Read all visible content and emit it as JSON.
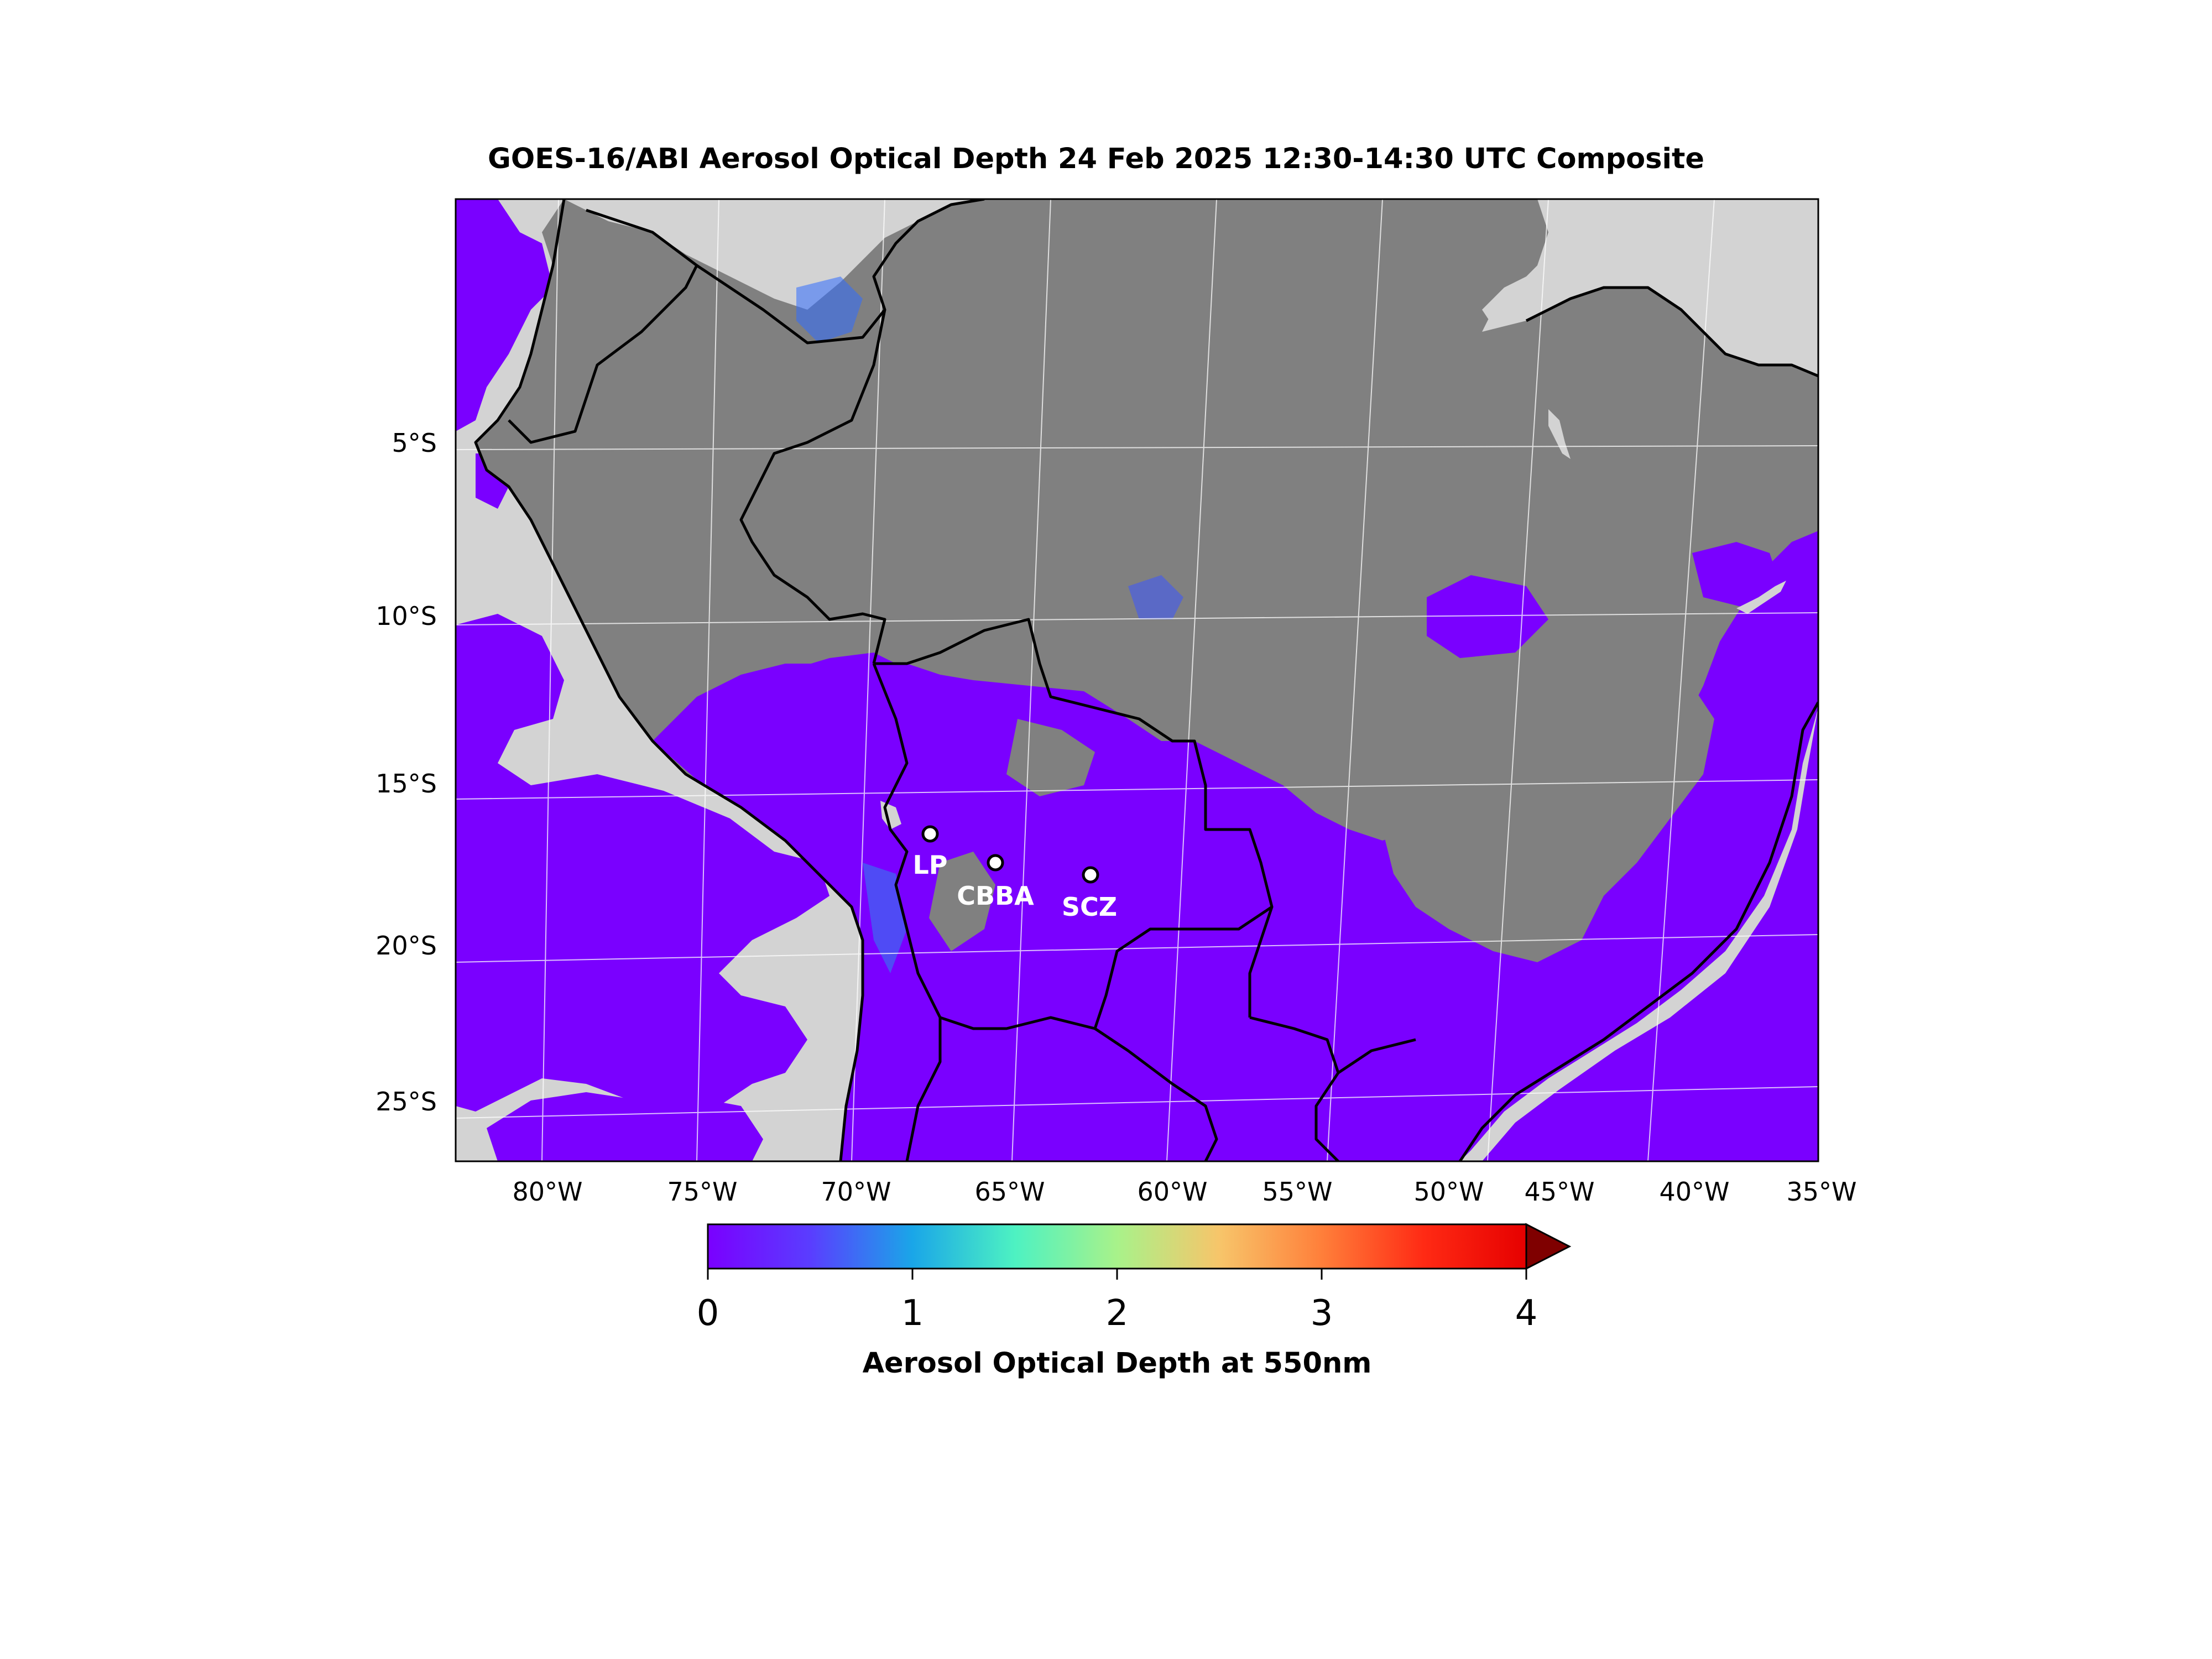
{
  "title": "GOES-16/ABI Aerosol Optical Depth  24 Feb 2025  12:30-14:30 UTC Composite",
  "lat_labels": [
    "5°S",
    "10°S",
    "15°S",
    "20°S",
    "25°S"
  ],
  "lon_labels": [
    "80°W",
    "75°W",
    "70°W",
    "65°W",
    "60°W",
    "55°W",
    "50°W",
    "45°W",
    "40°W",
    "35°W"
  ],
  "colorbar": {
    "label": "Aerosol Optical Depth at 550nm",
    "ticks": [
      "0",
      "1",
      "2",
      "3",
      "4"
    ],
    "range": [
      0,
      4
    ],
    "extend": "max",
    "colors": [
      "#7a00ff",
      "#5a3dff",
      "#1aa6e8",
      "#4df2c2",
      "#a8f28a",
      "#f7c56a",
      "#ff7f3a",
      "#ff2a14",
      "#e60000"
    ],
    "over_color": "#7f0000"
  },
  "colors": {
    "no_data_land": "#808080",
    "no_data_cloud": "#d3d3d3",
    "low_aod": "#7a00ff"
  },
  "cities": [
    {
      "name": "LP",
      "lon": -68.1,
      "lat": -16.5
    },
    {
      "name": "CBBA",
      "lon": -66.2,
      "lat": -17.4
    },
    {
      "name": "SCZ",
      "lon": -63.2,
      "lat": -17.8
    }
  ]
}
